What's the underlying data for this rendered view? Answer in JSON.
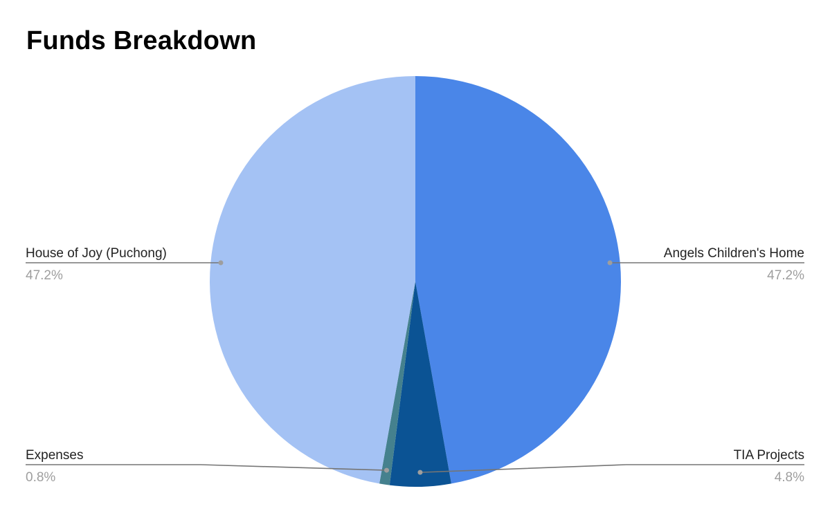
{
  "chart_data": {
    "type": "pie",
    "title": "Funds Breakdown",
    "slices": [
      {
        "label": "Angels Children's Home",
        "value": 47.2,
        "percent_label": "47.2%",
        "color": "#4A86E8"
      },
      {
        "label": "TIA Projects",
        "value": 4.8,
        "percent_label": "4.8%",
        "color": "#0B5394"
      },
      {
        "label": "Expenses",
        "value": 0.8,
        "percent_label": "0.8%",
        "color": "#45818E"
      },
      {
        "label": "House of Joy (Puchong)",
        "value": 47.2,
        "percent_label": "47.2%",
        "color": "#A4C2F4"
      }
    ],
    "legend": "none",
    "labels_style": "callout lines"
  }
}
